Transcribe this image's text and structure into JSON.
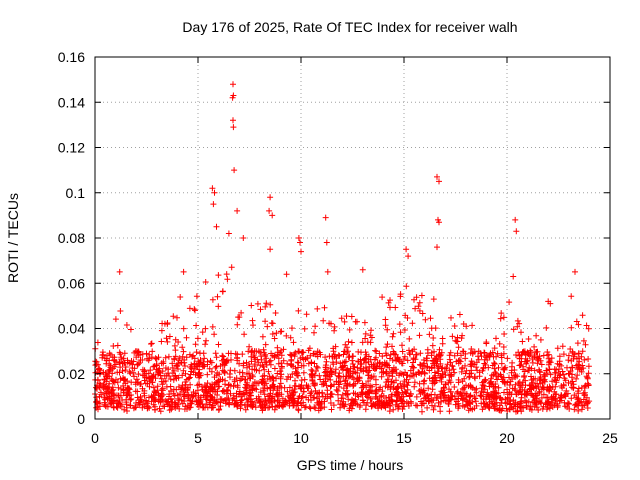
{
  "chart_data": {
    "type": "scatter",
    "title": "Day 176 of 2025, Rate Of TEC Index for receiver walh",
    "xlabel": "GPS time / hours",
    "ylabel": "ROTI / TECUs",
    "xlim": [
      0,
      25
    ],
    "ylim": [
      0,
      0.16
    ],
    "xticks": [
      0,
      5,
      10,
      15,
      20,
      25
    ],
    "yticks": [
      0,
      0.02,
      0.04,
      0.06,
      0.08,
      0.1,
      0.12,
      0.14,
      0.16
    ],
    "xtick_labels": [
      "0",
      "5",
      "10",
      "15",
      "20",
      "25"
    ],
    "ytick_labels": [
      "0",
      "0.02",
      "0.04",
      "0.06",
      "0.08",
      "0.1",
      "0.12",
      "0.14",
      "0.16"
    ],
    "grid": true,
    "legend": "none",
    "series_color": "#ff0000",
    "marker": "+",
    "outliers": [
      {
        "x": 6.7,
        "y": 0.148
      },
      {
        "x": 6.72,
        "y": 0.143
      },
      {
        "x": 6.68,
        "y": 0.142
      },
      {
        "x": 6.7,
        "y": 0.132
      },
      {
        "x": 6.72,
        "y": 0.129
      },
      {
        "x": 6.75,
        "y": 0.11
      },
      {
        "x": 5.7,
        "y": 0.102
      },
      {
        "x": 5.8,
        "y": 0.1
      },
      {
        "x": 5.75,
        "y": 0.095
      },
      {
        "x": 5.9,
        "y": 0.085
      },
      {
        "x": 6.5,
        "y": 0.082
      },
      {
        "x": 6.9,
        "y": 0.092
      },
      {
        "x": 7.2,
        "y": 0.08
      },
      {
        "x": 8.5,
        "y": 0.098
      },
      {
        "x": 8.45,
        "y": 0.092
      },
      {
        "x": 8.6,
        "y": 0.09
      },
      {
        "x": 8.5,
        "y": 0.075
      },
      {
        "x": 9.9,
        "y": 0.08
      },
      {
        "x": 9.95,
        "y": 0.078
      },
      {
        "x": 10.0,
        "y": 0.074
      },
      {
        "x": 11.2,
        "y": 0.089
      },
      {
        "x": 11.25,
        "y": 0.078
      },
      {
        "x": 11.3,
        "y": 0.065
      },
      {
        "x": 13.0,
        "y": 0.066
      },
      {
        "x": 15.1,
        "y": 0.075
      },
      {
        "x": 15.2,
        "y": 0.072
      },
      {
        "x": 16.6,
        "y": 0.107
      },
      {
        "x": 16.7,
        "y": 0.105
      },
      {
        "x": 16.65,
        "y": 0.088
      },
      {
        "x": 16.7,
        "y": 0.087
      },
      {
        "x": 16.6,
        "y": 0.076
      },
      {
        "x": 20.4,
        "y": 0.088
      },
      {
        "x": 20.45,
        "y": 0.083
      },
      {
        "x": 20.3,
        "y": 0.063
      },
      {
        "x": 23.3,
        "y": 0.065
      },
      {
        "x": 1.2,
        "y": 0.065
      },
      {
        "x": 4.3,
        "y": 0.065
      },
      {
        "x": 9.3,
        "y": 0.064
      },
      {
        "x": 22.0,
        "y": 0.052
      },
      {
        "x": 22.1,
        "y": 0.051
      }
    ],
    "envelope": [
      {
        "x": 0.0,
        "y": 0.038
      },
      {
        "x": 0.5,
        "y": 0.03
      },
      {
        "x": 1.0,
        "y": 0.055
      },
      {
        "x": 1.5,
        "y": 0.045
      },
      {
        "x": 2.0,
        "y": 0.035
      },
      {
        "x": 2.5,
        "y": 0.028
      },
      {
        "x": 3.0,
        "y": 0.04
      },
      {
        "x": 3.5,
        "y": 0.045
      },
      {
        "x": 4.0,
        "y": 0.058
      },
      {
        "x": 4.5,
        "y": 0.058
      },
      {
        "x": 5.0,
        "y": 0.06
      },
      {
        "x": 5.5,
        "y": 0.062
      },
      {
        "x": 6.0,
        "y": 0.068
      },
      {
        "x": 6.5,
        "y": 0.072
      },
      {
        "x": 7.0,
        "y": 0.06
      },
      {
        "x": 7.5,
        "y": 0.055
      },
      {
        "x": 8.0,
        "y": 0.05
      },
      {
        "x": 8.5,
        "y": 0.055
      },
      {
        "x": 9.0,
        "y": 0.05
      },
      {
        "x": 9.5,
        "y": 0.045
      },
      {
        "x": 10.0,
        "y": 0.05
      },
      {
        "x": 10.5,
        "y": 0.045
      },
      {
        "x": 11.0,
        "y": 0.055
      },
      {
        "x": 11.5,
        "y": 0.045
      },
      {
        "x": 12.0,
        "y": 0.045
      },
      {
        "x": 12.5,
        "y": 0.048
      },
      {
        "x": 13.0,
        "y": 0.045
      },
      {
        "x": 13.5,
        "y": 0.05
      },
      {
        "x": 14.0,
        "y": 0.055
      },
      {
        "x": 14.5,
        "y": 0.052
      },
      {
        "x": 15.0,
        "y": 0.06
      },
      {
        "x": 15.5,
        "y": 0.055
      },
      {
        "x": 16.0,
        "y": 0.058
      },
      {
        "x": 16.5,
        "y": 0.062
      },
      {
        "x": 17.0,
        "y": 0.055
      },
      {
        "x": 17.5,
        "y": 0.048
      },
      {
        "x": 18.0,
        "y": 0.045
      },
      {
        "x": 18.5,
        "y": 0.045
      },
      {
        "x": 19.0,
        "y": 0.04
      },
      {
        "x": 19.5,
        "y": 0.045
      },
      {
        "x": 20.0,
        "y": 0.055
      },
      {
        "x": 20.5,
        "y": 0.05
      },
      {
        "x": 21.0,
        "y": 0.045
      },
      {
        "x": 21.5,
        "y": 0.04
      },
      {
        "x": 22.0,
        "y": 0.042
      },
      {
        "x": 22.5,
        "y": 0.045
      },
      {
        "x": 23.0,
        "y": 0.055
      },
      {
        "x": 23.5,
        "y": 0.058
      },
      {
        "x": 24.0,
        "y": 0.045
      }
    ],
    "baseline": 0.015,
    "data_start": 0.0,
    "data_end": 24.0
  }
}
